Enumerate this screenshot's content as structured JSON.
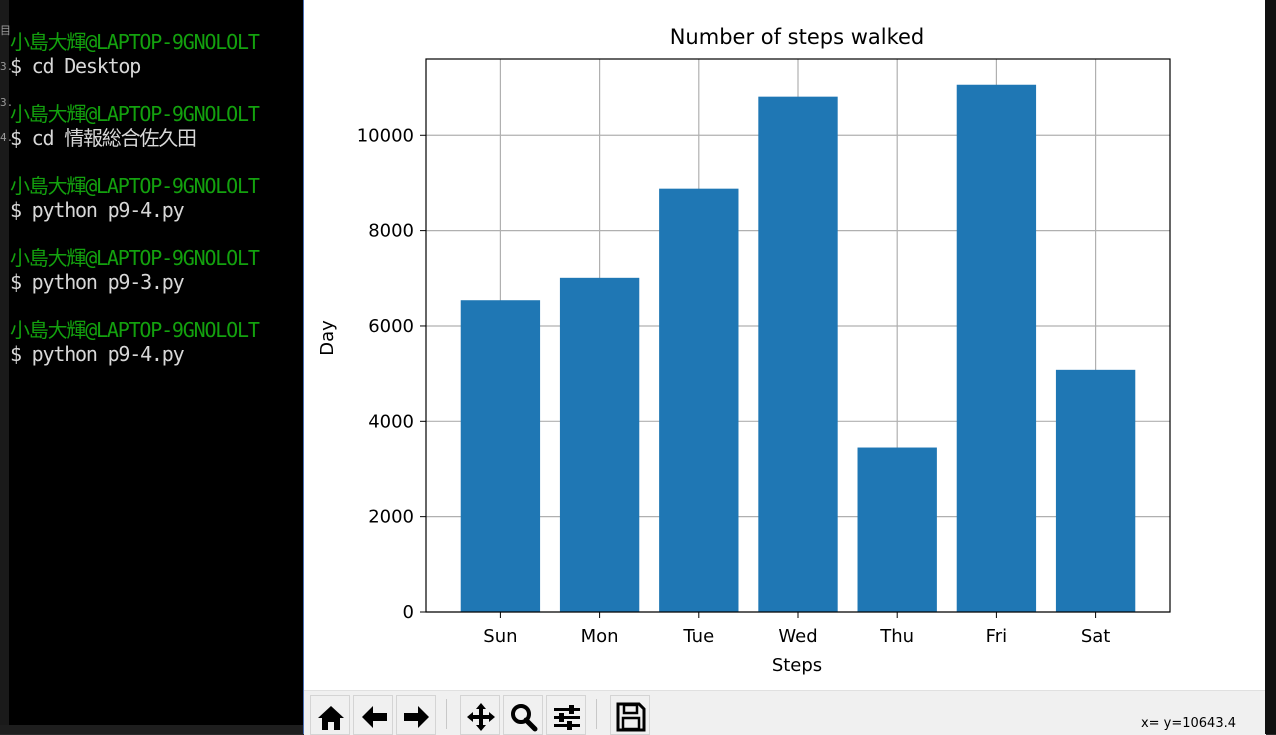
{
  "terminal": {
    "gutter_marks": [
      "目",
      "3.",
      "3.",
      "4."
    ],
    "lines": [
      {
        "text": "小島大輝@LAPTOP-9GNOLOLT",
        "color": "green"
      },
      {
        "text": "$ cd Desktop",
        "color": "white"
      },
      {
        "text": "",
        "color": "white"
      },
      {
        "text": "小島大輝@LAPTOP-9GNOLOLT",
        "color": "green"
      },
      {
        "text": "$ cd 情報総合佐久田",
        "color": "white"
      },
      {
        "text": "",
        "color": "white"
      },
      {
        "text": "小島大輝@LAPTOP-9GNOLOLT",
        "color": "green"
      },
      {
        "text": "$ python p9-4.py",
        "color": "white"
      },
      {
        "text": "",
        "color": "white"
      },
      {
        "text": "小島大輝@LAPTOP-9GNOLOLT",
        "color": "green"
      },
      {
        "text": "$ python p9-3.py",
        "color": "white"
      },
      {
        "text": "",
        "color": "white"
      },
      {
        "text": "小島大輝@LAPTOP-9GNOLOLT",
        "color": "green"
      },
      {
        "text": "$ python p9-4.py",
        "color": "white"
      }
    ]
  },
  "chart_data": {
    "type": "bar",
    "title": "Number of steps walked",
    "xlabel": "Steps",
    "ylabel": "Day",
    "categories": [
      "Sun",
      "Mon",
      "Tue",
      "Wed",
      "Thu",
      "Fri",
      "Sat"
    ],
    "values": [
      6540,
      7010,
      8880,
      10810,
      3450,
      11060,
      5080
    ],
    "ylim": [
      0,
      11600
    ],
    "yticks": [
      0,
      2000,
      4000,
      6000,
      8000,
      10000
    ],
    "grid": true,
    "bar_color": "#1f77b4"
  },
  "toolbar": {
    "buttons": [
      "home-icon",
      "back-icon",
      "forward-icon",
      "pan-icon",
      "zoom-icon",
      "subplots-icon",
      "save-icon"
    ],
    "coordinates": "x= y=10643.4"
  }
}
